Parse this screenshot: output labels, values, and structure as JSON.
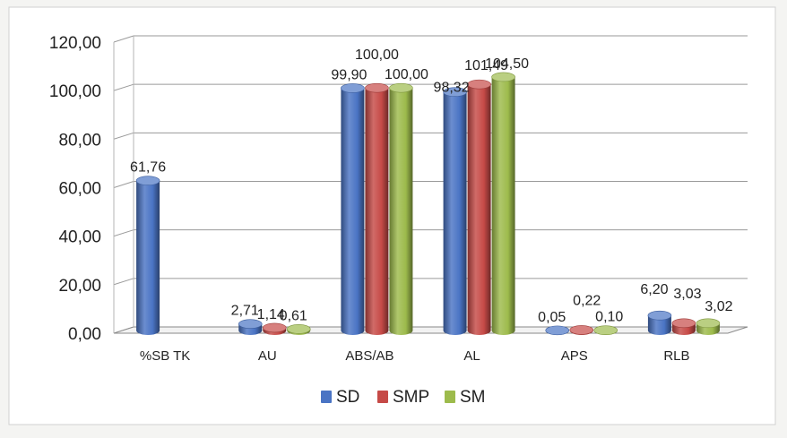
{
  "chart_data": {
    "type": "bar",
    "categories": [
      "%SB TK",
      "AU",
      "ABS/AB",
      "AL",
      "APS",
      "RLB"
    ],
    "series": [
      {
        "name": "SD",
        "color": "#4a74c4",
        "values": [
          61.76,
          2.71,
          99.9,
          98.32,
          0.05,
          6.2
        ]
      },
      {
        "name": "SMP",
        "color": "#c64a47",
        "values": [
          null,
          1.14,
          100.0,
          101.49,
          0.22,
          3.03
        ]
      },
      {
        "name": "SM",
        "color": "#9dbb4c",
        "values": [
          null,
          0.61,
          100.0,
          104.5,
          0.1,
          3.02
        ]
      }
    ],
    "data_labels": [
      [
        "61,76",
        "2,71",
        "99,90",
        "98,32",
        "0,05",
        "6,20"
      ],
      [
        "",
        "1,14",
        "100,00",
        "101,49",
        "0,22",
        "3,03"
      ],
      [
        "",
        "0,61",
        "100,00",
        "104,50",
        "0,10",
        "3,02"
      ]
    ],
    "yticks": [
      "0,00",
      "20,00",
      "40,00",
      "60,00",
      "80,00",
      "100,00",
      "120,00"
    ],
    "ylim": [
      0,
      120
    ],
    "grid": true,
    "legend": "bottom",
    "title": "",
    "xlabel": "",
    "ylabel": ""
  }
}
